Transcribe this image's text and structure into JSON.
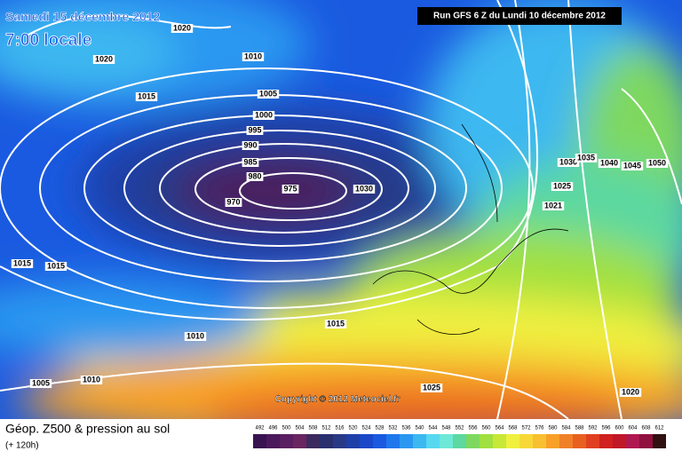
{
  "header": {
    "date": "Samedi 15 décembre 2012",
    "time": "7:00 locale",
    "run": "Run GFS 6 Z du Lundi 10 décembre 2012"
  },
  "copyright": "Copyright © 2012 Meteociel.fr",
  "footer": {
    "title": "Géop. Z500 & pression au sol",
    "lead": "(+ 120h)"
  },
  "isobar_labels": [
    "1020",
    "1020",
    "1010",
    "1015",
    "1005",
    "1000",
    "995",
    "990",
    "985",
    "980",
    "975",
    "970",
    "1030",
    "1030",
    "1035",
    "1040",
    "1045",
    "1050",
    "1025",
    "1021",
    "1015",
    "1015",
    "1010",
    "1015",
    "1005",
    "1010",
    "1025",
    "1020"
  ],
  "legend": {
    "values": [
      492,
      496,
      500,
      504,
      508,
      512,
      516,
      520,
      524,
      528,
      532,
      536,
      540,
      544,
      548,
      552,
      556,
      560,
      564,
      568,
      572,
      576,
      580,
      584,
      588,
      592,
      596,
      600,
      604,
      608,
      612
    ],
    "colors": [
      "#3a1450",
      "#4b1a5c",
      "#5a1f60",
      "#6a2460",
      "#3c2a5e",
      "#2a2f6e",
      "#283a86",
      "#1f3fa8",
      "#1a48c8",
      "#1a5ae0",
      "#1e78ec",
      "#2a98f0",
      "#3cb8f0",
      "#56d8f0",
      "#6ee8d8",
      "#5cd8a0",
      "#7ed860",
      "#a0e040",
      "#c8e838",
      "#f0f040",
      "#f8d838",
      "#f8c030",
      "#f8a028",
      "#f08028",
      "#e86020",
      "#e04020",
      "#d02020",
      "#c01828",
      "#b01850",
      "#901040",
      "#301010"
    ]
  }
}
